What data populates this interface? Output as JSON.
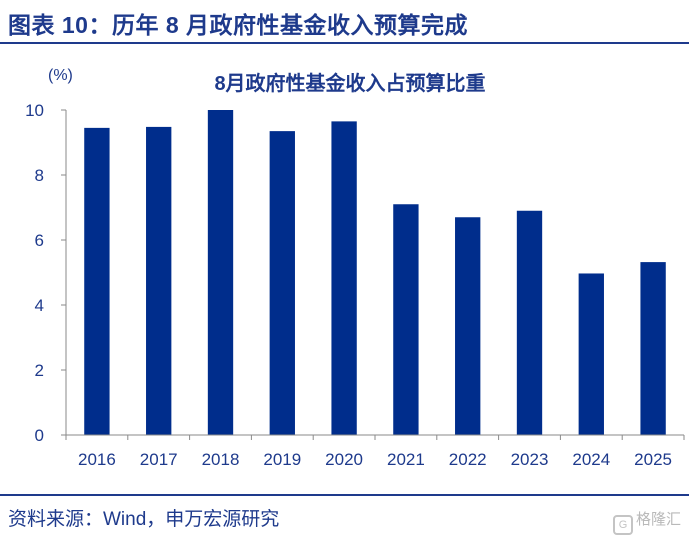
{
  "header": {
    "title": "图表 10：历年 8 月政府性基金收入预算完成"
  },
  "chart_data": {
    "type": "bar",
    "title": "8月政府性基金收入占预算比重",
    "ylabel": "(%)",
    "xlabel": "",
    "categories": [
      "2016",
      "2017",
      "2018",
      "2019",
      "2020",
      "2021",
      "2022",
      "2023",
      "2024",
      "2025"
    ],
    "values": [
      9.45,
      9.48,
      10.0,
      9.35,
      9.65,
      7.1,
      6.7,
      6.9,
      4.97,
      5.32
    ],
    "ylim": [
      0,
      10
    ],
    "yticks": [
      0,
      2,
      4,
      6,
      8,
      10
    ],
    "bar_color": "#002d8c",
    "grid": false
  },
  "footer": {
    "source": "资料来源：Wind，申万宏源研究",
    "watermark": "格隆汇"
  }
}
